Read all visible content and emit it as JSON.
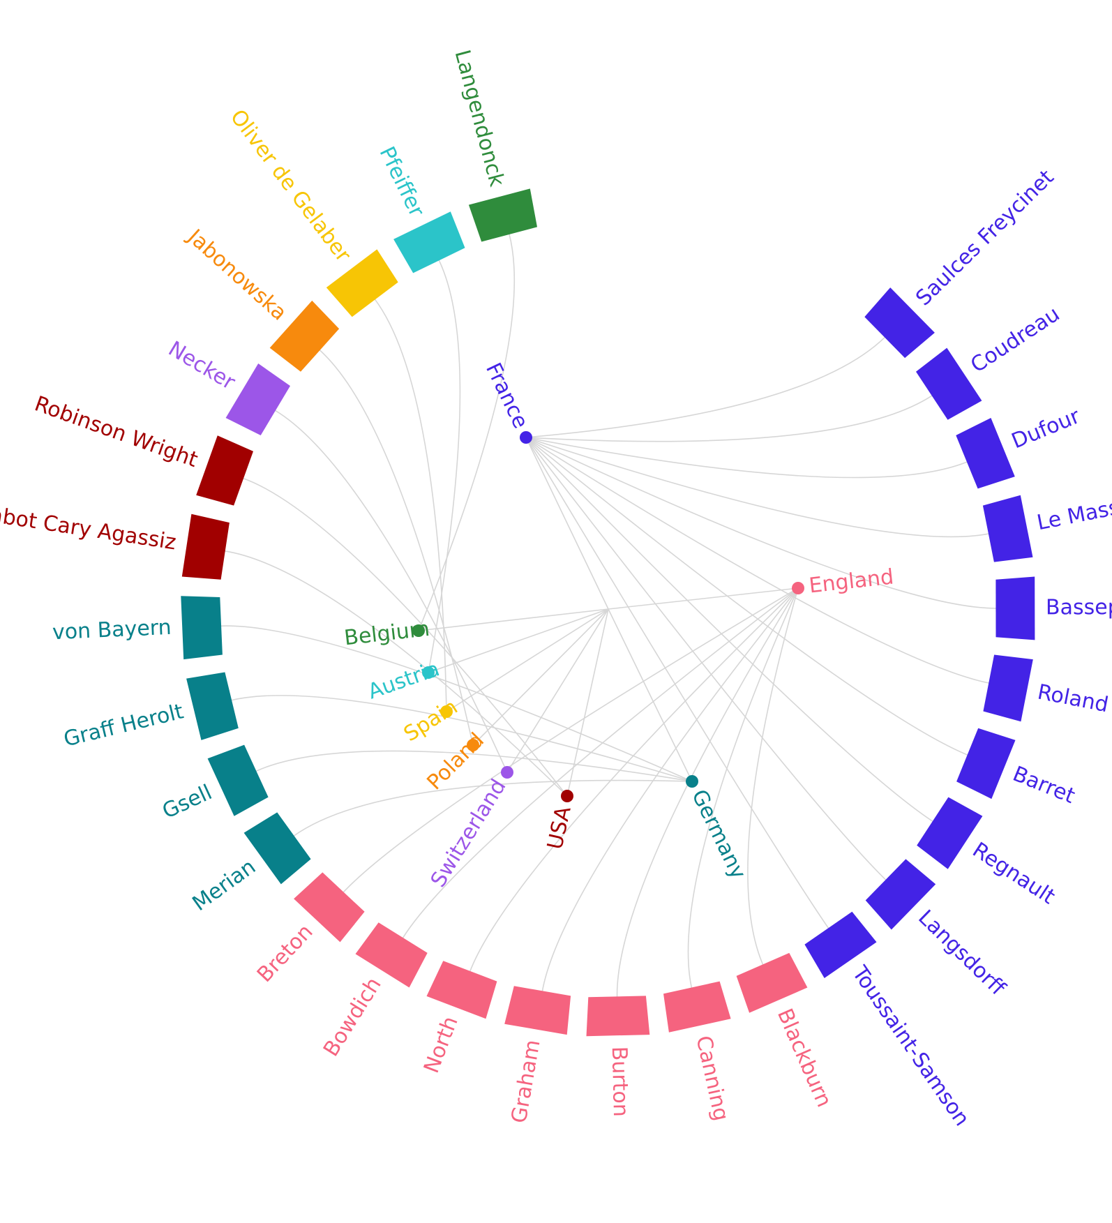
{
  "colors": {
    "France": "#4323e6",
    "England": "#f5637f",
    "Germany": "#08808a",
    "USA": "#a10000",
    "Switzerland": "#9c56e8",
    "Poland": "#f78a0d",
    "Spain": "#f7c505",
    "Austria": "#2bc4c9",
    "Belgium": "#2f8c3c",
    "link": "#d6d6d6"
  },
  "groups": [
    {
      "name": "France",
      "leaves": [
        "Saulces Freycinet",
        "Coudreau",
        "Dufour",
        "Le Masson Le Golft",
        "Basseporte",
        "Roland",
        "Barret",
        "Regnault",
        "Langsdorff",
        "Toussaint-Samson"
      ]
    },
    {
      "name": "England",
      "leaves": [
        "Blackburn",
        "Canning",
        "Burton",
        "Graham",
        "North",
        "Bowdich",
        "Breton"
      ]
    },
    {
      "name": "Germany",
      "leaves": [
        "Merian",
        "Gsell",
        "Graff Herolt",
        "von Bayern"
      ]
    },
    {
      "name": "USA",
      "leaves": [
        "Cabot Cary Agassiz",
        "Robinson Wright"
      ]
    },
    {
      "name": "Switzerland",
      "leaves": [
        "Necker"
      ]
    },
    {
      "name": "Poland",
      "leaves": [
        "Jabonowska"
      ]
    },
    {
      "name": "Spain",
      "leaves": [
        "Oliver de Gelaber"
      ]
    },
    {
      "name": "Austria",
      "leaves": [
        "Pfeiffer"
      ]
    },
    {
      "name": "Belgium",
      "leaves": [
        "Langendonck"
      ]
    }
  ]
}
